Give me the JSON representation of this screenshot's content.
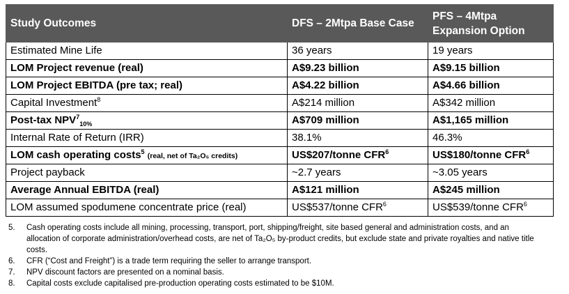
{
  "table": {
    "headers": [
      "Study Outcomes",
      "DFS – 2Mtpa Base Case",
      "PFS – 4Mtpa Expansion Option"
    ],
    "rows": [
      {
        "metric": "Estimated Mine Life",
        "dfs": "36 years",
        "pfs": "19 years"
      },
      {
        "metric": "LOM Project revenue (real)",
        "dfs": "A$9.23 billion",
        "pfs": "A$9.15 billion"
      },
      {
        "metric": "LOM Project EBITDA (pre tax; real)",
        "dfs": "A$4.22 billion",
        "pfs": "A$4.66 billion"
      },
      {
        "metric": "Capital Investment",
        "metric_sup": "8",
        "dfs": "A$214 million",
        "pfs": "A$342 million"
      },
      {
        "metric": "Post-tax NPV",
        "metric_sup": "7",
        "metric_sub": "10%",
        "dfs": "A$709 million",
        "pfs": "A$1,165 million"
      },
      {
        "metric": "Internal Rate of Return (IRR)",
        "dfs": "38.1%",
        "pfs": "46.3%"
      },
      {
        "metric": "LOM cash operating costs",
        "metric_sup": "5",
        "metric_note": "(real, net of Ta₂O₅ credits)",
        "dfs": "US$207/tonne CFR",
        "dfs_sup": "6",
        "pfs": "US$180/tonne CFR",
        "pfs_sup": "6"
      },
      {
        "metric": "Project payback",
        "dfs": "~2.7 years",
        "pfs": "~3.05 years"
      },
      {
        "metric": "Average Annual EBITDA (real)",
        "dfs": "A$121 million",
        "pfs": "A$245 million"
      },
      {
        "metric": "LOM assumed spodumene concentrate price (real)",
        "dfs": "US$537/tonne CFR",
        "dfs_sup": "6",
        "pfs": "US$539/tonne CFR",
        "pfs_sup": "6"
      }
    ]
  },
  "notes": [
    {
      "num": "5.",
      "text": "Cash operating costs include all mining, processing, transport, port, shipping/freight, site based general and administration costs, and an allocation of corporate administration/overhead costs, are net of Ta₂O₅ by-product credits, but exclude state and private royalties and native title costs."
    },
    {
      "num": "6.",
      "text": "CFR (“Cost and Freight”) is a trade term requiring the seller to arrange transport."
    },
    {
      "num": "7.",
      "text": "NPV discount factors are presented on a nominal basis."
    },
    {
      "num": "8.",
      "text": "Capital costs exclude capitalised pre-production operating costs estimated to be $10M."
    }
  ]
}
